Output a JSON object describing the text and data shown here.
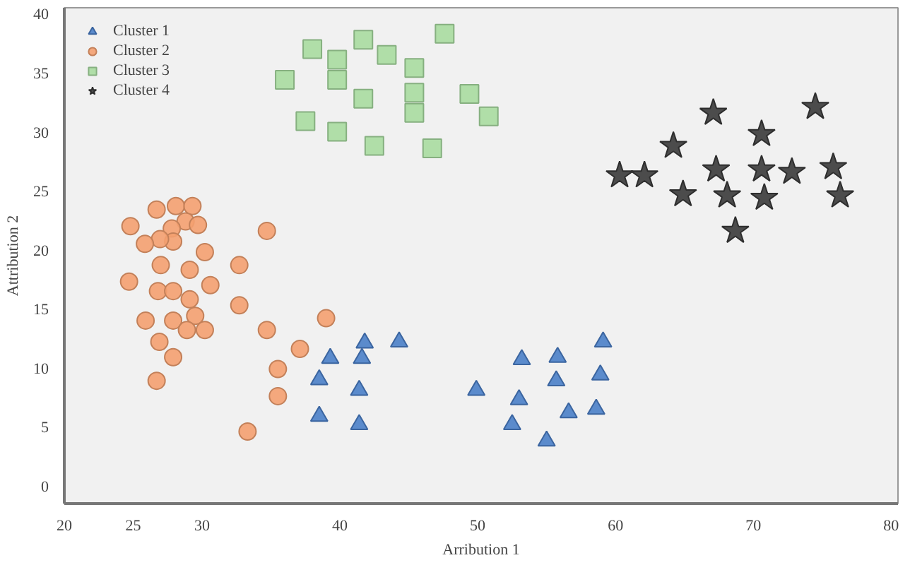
{
  "chart_data": {
    "type": "scatter",
    "xlabel": "Arribution 1",
    "ylabel": "Attribution 2",
    "xlim": [
      20,
      80.5
    ],
    "ylim": [
      -1.5,
      40.5
    ],
    "xticks": [
      20,
      25,
      30,
      40,
      50,
      60,
      70,
      80
    ],
    "yticks": [
      0,
      5,
      10,
      15,
      20,
      25,
      30,
      35,
      40
    ],
    "grid": false,
    "legend": "top left",
    "series": [
      {
        "name": "Cluster 1",
        "color": "#4a7fc8",
        "marker": "triangle",
        "x": [
          39.3,
          41.8,
          41.6,
          44.3,
          38.5,
          41.4,
          38.5,
          41.4,
          49.9,
          53.2,
          55.8,
          59.1,
          55.7,
          58.9,
          53.0,
          56.6,
          58.6,
          52.5,
          55.0
        ],
        "values": [
          10.8,
          12.1,
          10.8,
          12.2,
          9.0,
          8.1,
          5.9,
          5.2,
          8.1,
          10.7,
          10.9,
          12.2,
          8.9,
          9.4,
          7.3,
          6.2,
          6.5,
          5.2,
          3.8
        ]
      },
      {
        "name": "Cluster 2",
        "color": "#f4a070",
        "marker": "circle",
        "x": [
          24.8,
          26.7,
          28.1,
          29.3,
          28.8,
          29.7,
          27.8,
          27.9,
          26.95,
          25.85,
          34.7,
          27.0,
          29.1,
          30.2,
          32.7,
          24.7,
          26.8,
          27.9,
          29.1,
          30.6,
          32.7,
          25.9,
          27.9,
          29.5,
          28.9,
          30.2,
          34.7,
          39.0,
          26.9,
          27.9,
          37.1,
          35.5,
          26.7,
          35.5,
          33.3
        ],
        "values": [
          22.0,
          23.4,
          23.7,
          23.7,
          22.4,
          22.1,
          21.8,
          20.7,
          20.9,
          20.5,
          21.6,
          18.7,
          18.3,
          19.8,
          18.7,
          17.3,
          16.5,
          16.5,
          15.8,
          17.0,
          15.3,
          14.0,
          14.0,
          14.4,
          13.2,
          13.2,
          13.2,
          14.2,
          12.2,
          10.9,
          11.6,
          9.9,
          8.9,
          7.6,
          4.6
        ]
      },
      {
        "name": "Cluster 3",
        "color": "#a8dca0",
        "marker": "square",
        "x": [
          36.0,
          38.0,
          39.8,
          39.8,
          41.7,
          41.7,
          43.4,
          45.4,
          45.4,
          45.4,
          37.5,
          39.8,
          42.5,
          46.7,
          47.6,
          49.4,
          50.8
        ],
        "values": [
          34.4,
          37.0,
          36.1,
          34.4,
          37.8,
          32.8,
          36.5,
          35.4,
          33.3,
          31.6,
          30.9,
          30.0,
          28.8,
          28.6,
          38.3,
          33.2,
          31.3
        ]
      },
      {
        "name": "Cluster 4",
        "color": "#3a3a3a",
        "marker": "star",
        "x": [
          67.1,
          74.5,
          64.2,
          70.6,
          60.3,
          62.1,
          67.3,
          70.6,
          72.8,
          75.8,
          64.9,
          68.1,
          70.8,
          76.3,
          68.7
        ],
        "values": [
          31.6,
          32.1,
          28.8,
          29.8,
          26.3,
          26.3,
          26.8,
          26.8,
          26.6,
          27.0,
          24.7,
          24.6,
          24.4,
          24.6,
          21.6
        ]
      }
    ]
  }
}
